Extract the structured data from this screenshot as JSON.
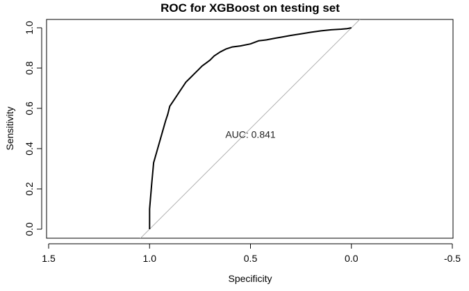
{
  "chart_data": {
    "type": "line",
    "title": "ROC for XGBoost on testing set",
    "xlabel": "Specificity",
    "ylabel": "Sensitivity",
    "xlim": [
      1.5,
      -0.5
    ],
    "ylim": [
      0.0,
      1.0
    ],
    "x_reversed": true,
    "grid": false,
    "x_ticks": [
      1.5,
      1.0,
      0.5,
      0.0,
      -0.5
    ],
    "x_tick_labels": [
      "1.5",
      "1.0",
      "0.5",
      "0.0",
      "-0.5"
    ],
    "y_ticks": [
      0.0,
      0.2,
      0.4,
      0.6,
      0.8,
      1.0
    ],
    "y_tick_labels": [
      "0.0",
      "0.2",
      "0.4",
      "0.6",
      "0.8",
      "1.0"
    ],
    "annotation": "AUC: 0.841",
    "annotation_at": {
      "x": 0.5,
      "y": 0.47
    },
    "series": [
      {
        "color": "#000000",
        "x": [
          1.0,
          1.0,
          0.99,
          0.98,
          0.96,
          0.94,
          0.92,
          0.91,
          0.9,
          0.88,
          0.86,
          0.84,
          0.82,
          0.8,
          0.78,
          0.76,
          0.74,
          0.72,
          0.7,
          0.68,
          0.65,
          0.62,
          0.59,
          0.55,
          0.5,
          0.46,
          0.42,
          0.38,
          0.34,
          0.3,
          0.25,
          0.2,
          0.15,
          0.1,
          0.05,
          0.02,
          0.0
        ],
        "y": [
          0.0,
          0.1,
          0.22,
          0.33,
          0.4,
          0.47,
          0.54,
          0.57,
          0.61,
          0.64,
          0.67,
          0.7,
          0.73,
          0.75,
          0.77,
          0.79,
          0.81,
          0.825,
          0.84,
          0.86,
          0.88,
          0.895,
          0.905,
          0.91,
          0.92,
          0.935,
          0.94,
          0.948,
          0.955,
          0.962,
          0.97,
          0.978,
          0.985,
          0.99,
          0.993,
          0.996,
          1.0
        ]
      },
      {
        "color": "#b0b0b0",
        "x": [
          1.0,
          0.0
        ],
        "y": [
          0.0,
          1.0
        ]
      }
    ]
  }
}
